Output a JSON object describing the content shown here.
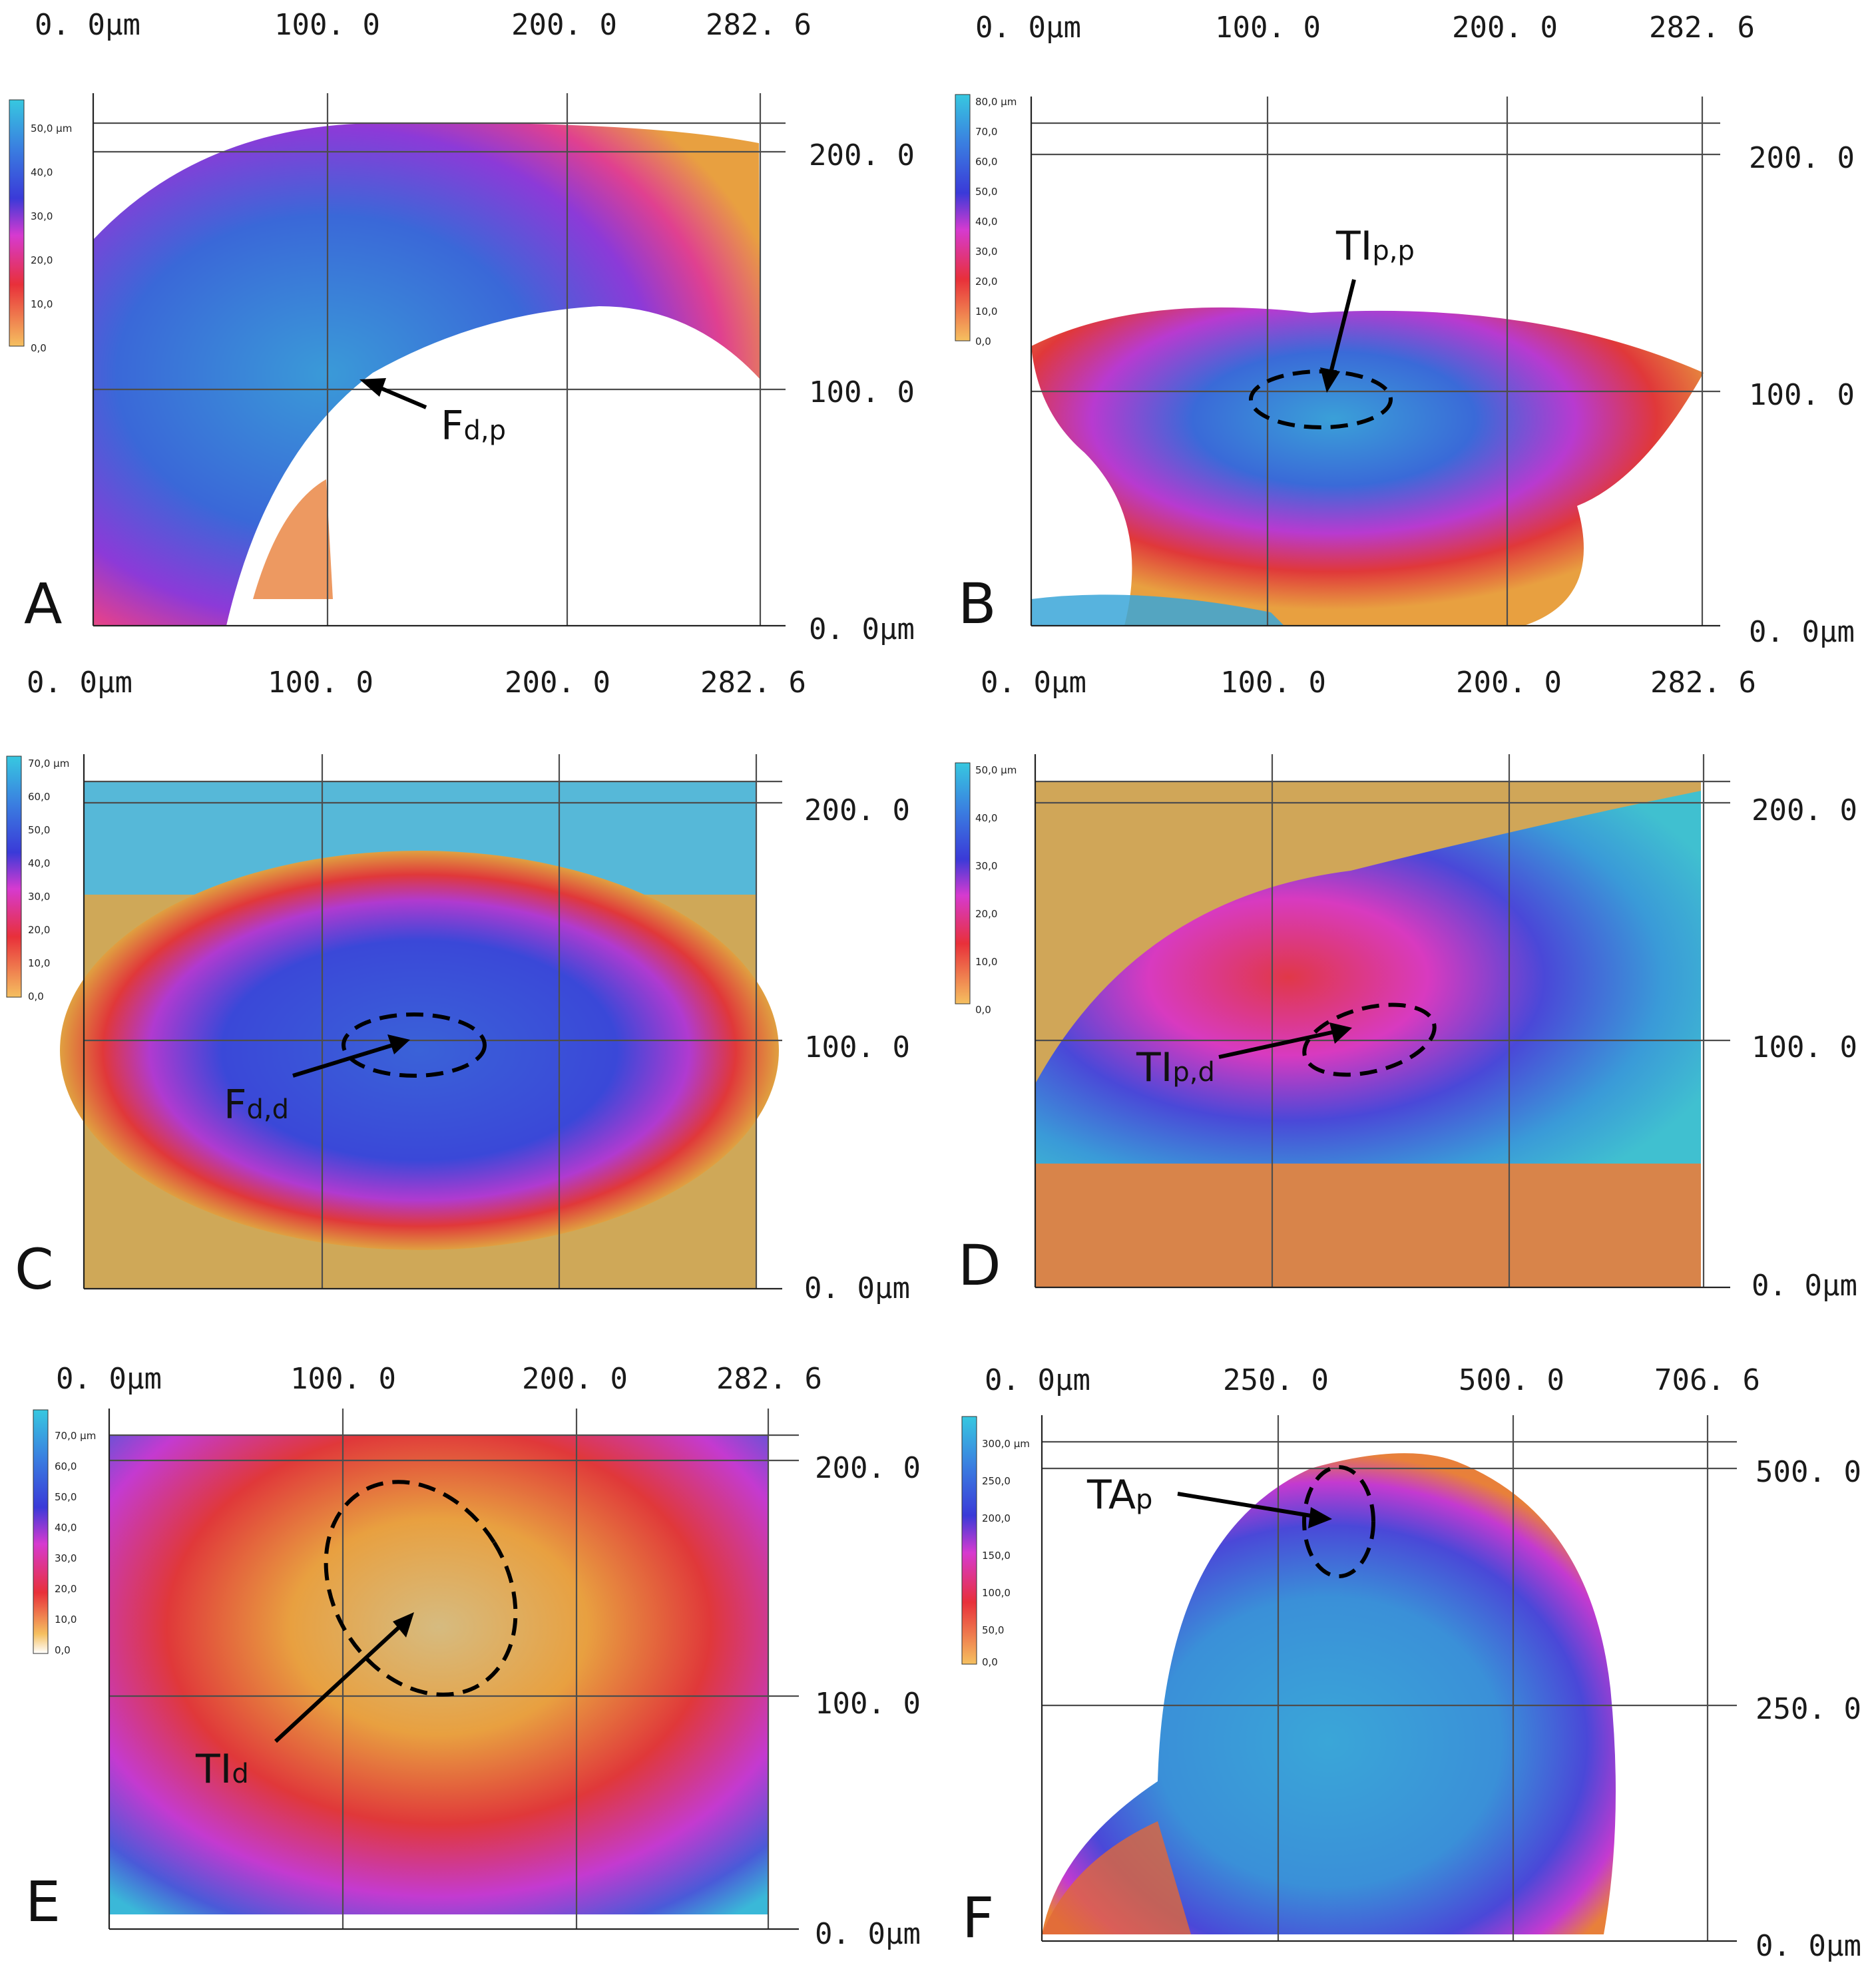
{
  "figure": {
    "colors": {
      "scale_low": "#f5a623",
      "scale_mid_red": "#e8303a",
      "scale_mid_magenta": "#d63ad0",
      "scale_mid_blue": "#3a3ad8",
      "scale_high": "#37c8e0",
      "background": "#ffffff"
    },
    "panels": [
      {
        "id": "A",
        "letter": "A",
        "x_ticks": [
          "0. 0µm",
          "100. 0",
          "200. 0",
          "282. 6"
        ],
        "y_ticks": [
          "200. 0",
          "100. 0",
          "0. 0µm"
        ],
        "color_scale": [
          "50,0 µm",
          "40,0",
          "30,0",
          "20,0",
          "10,0",
          "0,0"
        ],
        "annotation": {
          "main": "F",
          "sub": "d,p"
        }
      },
      {
        "id": "B",
        "letter": "B",
        "x_ticks": [
          "0. 0µm",
          "100. 0",
          "200. 0",
          "282. 6"
        ],
        "y_ticks": [
          "200. 0",
          "100. 0",
          "0. 0µm"
        ],
        "color_scale": [
          "80,0 µm",
          "70,0",
          "60,0",
          "50,0",
          "40,0",
          "30,0",
          "20,0",
          "10,0",
          "0,0"
        ],
        "annotation": {
          "main": "TI",
          "sub": "p,p"
        }
      },
      {
        "id": "C",
        "letter": "C",
        "x_ticks": [
          "0. 0µm",
          "100. 0",
          "200. 0",
          "282. 6"
        ],
        "y_ticks": [
          "200. 0",
          "100. 0",
          "0. 0µm"
        ],
        "color_scale": [
          "70,0 µm",
          "60,0",
          "50,0",
          "40,0",
          "30,0",
          "20,0",
          "10,0",
          "0,0"
        ],
        "annotation": {
          "main": "F",
          "sub": "d,d"
        }
      },
      {
        "id": "D",
        "letter": "D",
        "x_ticks": [
          "0. 0µm",
          "100. 0",
          "200. 0",
          "282. 6"
        ],
        "y_ticks": [
          "200. 0",
          "100. 0",
          "0. 0µm"
        ],
        "color_scale": [
          "50,0 µm",
          "40,0",
          "30,0",
          "20,0",
          "10,0",
          "0,0"
        ],
        "annotation": {
          "main": "TI",
          "sub": "p,d"
        }
      },
      {
        "id": "E",
        "letter": "E",
        "x_ticks": [
          "0. 0µm",
          "100. 0",
          "200. 0",
          "282. 6"
        ],
        "y_ticks": [
          "200. 0",
          "100. 0",
          "0. 0µm"
        ],
        "color_scale": [
          "70,0 µm",
          "60,0",
          "50,0",
          "40,0",
          "30,0",
          "20,0",
          "10,0",
          "0,0"
        ],
        "annotation": {
          "main": "TI",
          "sub": "d"
        }
      },
      {
        "id": "F",
        "letter": "F",
        "x_ticks": [
          "0. 0µm",
          "250. 0",
          "500. 0",
          "706. 6"
        ],
        "y_ticks": [
          "500. 0",
          "250. 0",
          "0. 0µm"
        ],
        "color_scale": [
          "300,0 µm",
          "250,0",
          "200,0",
          "150,0",
          "100,0",
          "50,0",
          "0,0"
        ],
        "annotation": {
          "main": "TA",
          "sub": "p"
        }
      }
    ]
  }
}
